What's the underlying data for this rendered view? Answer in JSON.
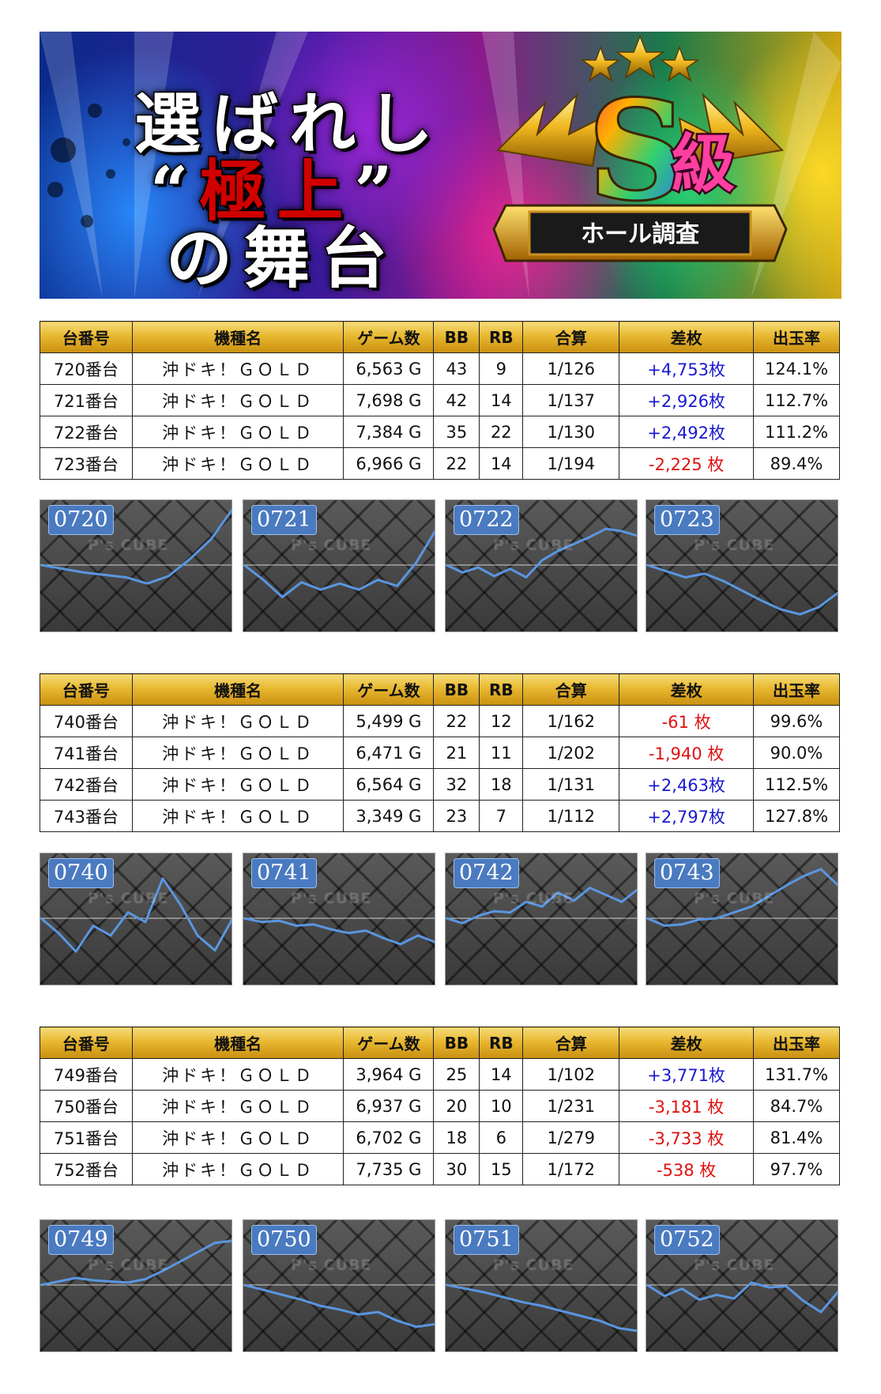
{
  "banner": {
    "line1": "選ばれし",
    "line2_quote_open": "“",
    "line2_main": "極上",
    "line2_quote_close": "”",
    "line3": "の舞台",
    "badge_main": "S",
    "badge_kanji": "級",
    "badge_ribbon": "ホール調査"
  },
  "headers": [
    "台番号",
    "機種名",
    "ゲーム数",
    "BB",
    "RB",
    "合算",
    "差枚",
    "出玉率"
  ],
  "watermark": "P's CUBE",
  "colors": {
    "positive": "#1818d0",
    "negative": "#e01010",
    "graph_line": "#5a96e0"
  },
  "groups": [
    {
      "rows": [
        {
          "unit": "720番台",
          "model": "沖ドキ！ＧＯＬＤ",
          "games": "6,563 G",
          "bb": "43",
          "rb": "9",
          "combined": "1/126",
          "diff": "+4,753枚",
          "rate": "124.1%",
          "sign": "pos"
        },
        {
          "unit": "721番台",
          "model": "沖ドキ！ＧＯＬＤ",
          "games": "7,698 G",
          "bb": "42",
          "rb": "14",
          "combined": "1/137",
          "diff": "+2,926枚",
          "rate": "112.7%",
          "sign": "pos"
        },
        {
          "unit": "722番台",
          "model": "沖ドキ！ＧＯＬＤ",
          "games": "7,384 G",
          "bb": "35",
          "rb": "22",
          "combined": "1/130",
          "diff": "+2,492枚",
          "rate": "111.2%",
          "sign": "pos"
        },
        {
          "unit": "723番台",
          "model": "沖ドキ！ＧＯＬＤ",
          "games": "6,966 G",
          "bb": "22",
          "rb": "14",
          "combined": "1/194",
          "diff": "-2,225 枚",
          "rate": "89.4%",
          "sign": "neg"
        }
      ],
      "graphs": [
        {
          "label": "0720",
          "series": [
            0,
            -300,
            -600,
            -800,
            -1000,
            -1500,
            -900,
            500,
            2200,
            4753
          ]
        },
        {
          "label": "0721",
          "series": [
            0,
            -1200,
            -2600,
            -1400,
            -2000,
            -1500,
            -2000,
            -1200,
            -1700,
            200,
            2926
          ]
        },
        {
          "label": "0722",
          "series": [
            0,
            -600,
            -200,
            -900,
            -300,
            -1000,
            400,
            1200,
            1800,
            2400,
            3100,
            2900,
            2492
          ]
        },
        {
          "label": "0723",
          "series": [
            0,
            -500,
            -1000,
            -700,
            -1300,
            -2100,
            -2900,
            -3600,
            -4000,
            -3400,
            -2225
          ]
        }
      ]
    },
    {
      "rows": [
        {
          "unit": "740番台",
          "model": "沖ドキ！ＧＯＬＤ",
          "games": "5,499 G",
          "bb": "22",
          "rb": "12",
          "combined": "1/162",
          "diff": "-61 枚",
          "rate": "99.6%",
          "sign": "neg"
        },
        {
          "unit": "741番台",
          "model": "沖ドキ！ＧＯＬＤ",
          "games": "6,471 G",
          "bb": "21",
          "rb": "11",
          "combined": "1/202",
          "diff": "-1,940 枚",
          "rate": "90.0%",
          "sign": "neg"
        },
        {
          "unit": "742番台",
          "model": "沖ドキ！ＧＯＬＤ",
          "games": "6,564 G",
          "bb": "32",
          "rb": "18",
          "combined": "1/131",
          "diff": "+2,463枚",
          "rate": "112.5%",
          "sign": "pos"
        },
        {
          "unit": "743番台",
          "model": "沖ドキ！ＧＯＬＤ",
          "games": "3,349 G",
          "bb": "23",
          "rb": "7",
          "combined": "1/112",
          "diff": "+2,797枚",
          "rate": "127.8%",
          "sign": "pos"
        }
      ],
      "graphs": [
        {
          "label": "0740",
          "series": [
            0,
            -1200,
            -2700,
            -600,
            -1400,
            500,
            -300,
            3400,
            1200,
            -1400,
            -2600,
            -61
          ]
        },
        {
          "label": "0741",
          "series": [
            0,
            -300,
            -200,
            -600,
            -500,
            -900,
            -1200,
            -1000,
            -1600,
            -2100,
            -1400,
            -1940
          ]
        },
        {
          "label": "0742",
          "series": [
            0,
            -400,
            200,
            600,
            500,
            1400,
            1000,
            2200,
            1500,
            2600,
            2000,
            1400,
            2463
          ]
        },
        {
          "label": "0743",
          "series": [
            0,
            -600,
            -500,
            -100,
            0,
            500,
            1000,
            1900,
            2800,
            3600,
            4200,
            2797
          ]
        }
      ]
    },
    {
      "rows": [
        {
          "unit": "749番台",
          "model": "沖ドキ！ＧＯＬＤ",
          "games": "3,964 G",
          "bb": "25",
          "rb": "14",
          "combined": "1/102",
          "diff": "+3,771枚",
          "rate": "131.7%",
          "sign": "pos"
        },
        {
          "unit": "750番台",
          "model": "沖ドキ！ＧＯＬＤ",
          "games": "6,937 G",
          "bb": "20",
          "rb": "10",
          "combined": "1/231",
          "diff": "-3,181 枚",
          "rate": "84.7%",
          "sign": "neg"
        },
        {
          "unit": "751番台",
          "model": "沖ドキ！ＧＯＬＤ",
          "games": "6,702 G",
          "bb": "18",
          "rb": "6",
          "combined": "1/279",
          "diff": "-3,733 枚",
          "rate": "81.4%",
          "sign": "neg"
        },
        {
          "unit": "752番台",
          "model": "沖ドキ！ＧＯＬＤ",
          "games": "7,735 G",
          "bb": "30",
          "rb": "15",
          "combined": "1/172",
          "diff": "-538 枚",
          "rate": "97.7%",
          "sign": "neg"
        }
      ],
      "graphs": [
        {
          "label": "0749",
          "series": [
            0,
            300,
            600,
            400,
            300,
            200,
            500,
            1200,
            2000,
            2800,
            3600,
            3771
          ]
        },
        {
          "label": "0750",
          "series": [
            0,
            -400,
            -800,
            -1200,
            -1700,
            -2000,
            -2400,
            -2200,
            -2900,
            -3400,
            -3181
          ]
        },
        {
          "label": "0751",
          "series": [
            0,
            -300,
            -600,
            -1000,
            -1400,
            -1700,
            -2100,
            -2500,
            -2900,
            -3500,
            -3733
          ]
        },
        {
          "label": "0752",
          "series": [
            0,
            -900,
            -300,
            -1200,
            -800,
            -1100,
            200,
            -200,
            -100,
            -1300,
            -2200,
            -538
          ]
        }
      ]
    }
  ]
}
